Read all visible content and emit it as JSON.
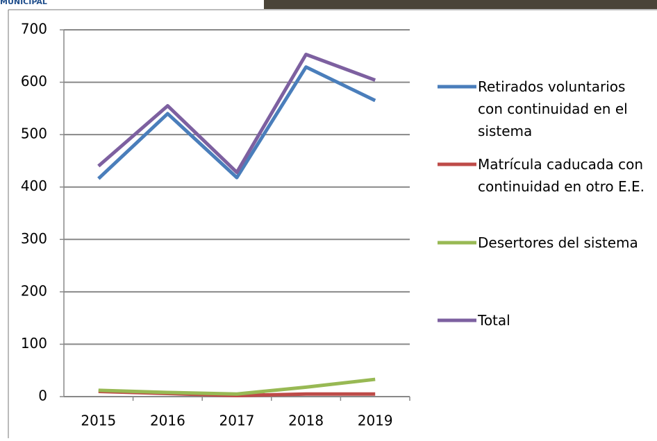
{
  "header": {
    "logo_text": "MUNICIPAL"
  },
  "chart_data": {
    "type": "line",
    "categories": [
      "2015",
      "2016",
      "2017",
      "2018",
      "2019"
    ],
    "series": [
      {
        "name": "Retirados voluntarios con continuidad en el sistema",
        "color": "#4a7ebb",
        "values": [
          416,
          540,
          418,
          629,
          565
        ]
      },
      {
        "name": "Matrícula caducada con continuidad en otro E.E.",
        "color": "#be4b48",
        "values": [
          10,
          6,
          2,
          5,
          5
        ]
      },
      {
        "name": "Desertores del sistema",
        "color": "#98b954",
        "values": [
          12,
          8,
          5,
          18,
          33
        ]
      },
      {
        "name": "Total",
        "color": "#7d60a0",
        "values": [
          440,
          555,
          428,
          653,
          604
        ]
      }
    ],
    "ylim": [
      0,
      700
    ],
    "yticks": [
      0,
      100,
      200,
      300,
      400,
      500,
      600,
      700
    ],
    "grid": true,
    "legend": "right"
  }
}
